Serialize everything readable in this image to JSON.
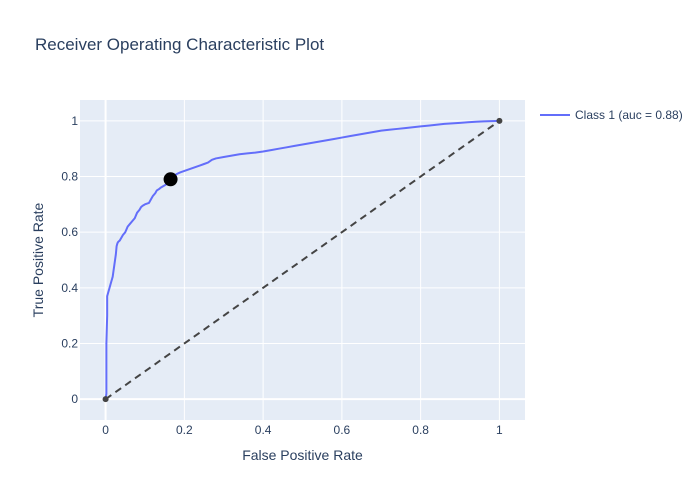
{
  "chart_data": {
    "type": "line",
    "title": "Receiver Operating Characteristic Plot",
    "xlabel": "False Positive Rate",
    "ylabel": "True Positive Rate",
    "xlim": [
      -0.065,
      1.065
    ],
    "ylim": [
      -0.075,
      1.075
    ],
    "xticks": [
      0,
      0.2,
      0.4,
      0.6,
      0.8,
      1
    ],
    "xtick_labels": [
      "0",
      "0.2",
      "0.4",
      "0.6",
      "0.8",
      "1"
    ],
    "yticks": [
      0,
      0.2,
      0.4,
      0.6,
      0.8,
      1
    ],
    "ytick_labels": [
      "0",
      "0.2",
      "0.4",
      "0.6",
      "0.8",
      "1"
    ],
    "grid": true,
    "legend_position": "top-right",
    "series": [
      {
        "name": "Class 1 (auc = 0.88)",
        "color": "#636efa",
        "x": [
          0,
          0.002,
          0.002,
          0.004,
          0.004,
          0.006,
          0.008,
          0.01,
          0.012,
          0.014,
          0.016,
          0.018,
          0.02,
          0.022,
          0.024,
          0.026,
          0.028,
          0.03,
          0.032,
          0.036,
          0.04,
          0.044,
          0.05,
          0.056,
          0.062,
          0.068,
          0.074,
          0.08,
          0.086,
          0.09,
          0.094,
          0.1,
          0.11,
          0.116,
          0.12,
          0.126,
          0.13,
          0.136,
          0.14,
          0.146,
          0.152,
          0.16,
          0.166,
          0.17,
          0.176,
          0.182,
          0.19,
          0.2,
          0.21,
          0.22,
          0.23,
          0.24,
          0.25,
          0.26,
          0.27,
          0.28,
          0.3,
          0.32,
          0.34,
          0.36,
          0.38,
          0.4,
          0.42,
          0.44,
          0.46,
          0.48,
          0.5,
          0.52,
          0.54,
          0.56,
          0.58,
          0.6,
          0.62,
          0.64,
          0.66,
          0.68,
          0.7,
          0.72,
          0.74,
          0.76,
          0.78,
          0.8,
          0.82,
          0.84,
          0.86,
          0.88,
          0.9,
          0.92,
          0.94,
          0.96,
          0.98,
          1
        ],
        "y": [
          0,
          0.02,
          0.2,
          0.3,
          0.37,
          0.38,
          0.39,
          0.4,
          0.41,
          0.42,
          0.43,
          0.44,
          0.46,
          0.48,
          0.5,
          0.52,
          0.55,
          0.56,
          0.565,
          0.57,
          0.58,
          0.59,
          0.6,
          0.62,
          0.63,
          0.64,
          0.65,
          0.67,
          0.68,
          0.69,
          0.695,
          0.7,
          0.705,
          0.72,
          0.73,
          0.74,
          0.75,
          0.755,
          0.76,
          0.765,
          0.77,
          0.78,
          0.79,
          0.8,
          0.805,
          0.81,
          0.815,
          0.82,
          0.825,
          0.83,
          0.835,
          0.84,
          0.845,
          0.85,
          0.86,
          0.865,
          0.87,
          0.875,
          0.88,
          0.883,
          0.886,
          0.89,
          0.895,
          0.9,
          0.905,
          0.91,
          0.915,
          0.92,
          0.925,
          0.93,
          0.935,
          0.94,
          0.945,
          0.95,
          0.955,
          0.96,
          0.965,
          0.968,
          0.971,
          0.974,
          0.977,
          0.98,
          0.983,
          0.986,
          0.989,
          0.991,
          0.993,
          0.995,
          0.997,
          0.998,
          0.999,
          1
        ]
      }
    ],
    "diagonal": {
      "x": [
        0,
        1
      ],
      "y": [
        0,
        1
      ],
      "color": "#444444",
      "dash": true
    },
    "operating_point": {
      "x": 0.165,
      "y": 0.79,
      "color": "#000000"
    },
    "endpoints": [
      {
        "x": 0,
        "y": 0
      },
      {
        "x": 1,
        "y": 1
      }
    ]
  }
}
